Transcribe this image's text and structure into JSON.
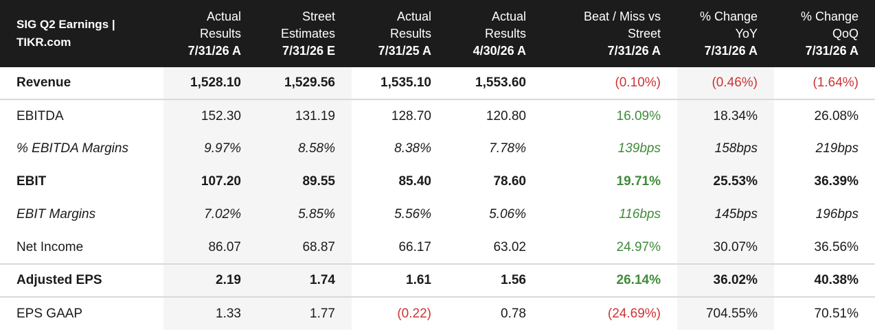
{
  "header": {
    "title_line1": "SIG Q2 Earnings |",
    "title_line2": "TIKR.com",
    "columns": [
      {
        "line1": "Actual",
        "line2": "Results",
        "date": "7/31/26 A"
      },
      {
        "line1": "Street",
        "line2": "Estimates",
        "date": "7/31/26 E"
      },
      {
        "line1": "Actual",
        "line2": "Results",
        "date": "7/31/25 A"
      },
      {
        "line1": "Actual",
        "line2": "Results",
        "date": "4/30/26 A"
      },
      {
        "line1": "Beat / Miss vs",
        "line2": "Street",
        "date": "7/31/26 A"
      },
      {
        "line1": "% Change",
        "line2": "YoY",
        "date": "7/31/26 A"
      },
      {
        "line1": "% Change",
        "line2": "QoQ",
        "date": "7/31/26 A"
      }
    ]
  },
  "rows": [
    {
      "label": "Revenue",
      "values": [
        "1,528.10",
        "1,529.56",
        "1,535.10",
        "1,553.60",
        "(0.10%)",
        "(0.46%)",
        "(1.64%)"
      ]
    },
    {
      "label": "EBITDA",
      "values": [
        "152.30",
        "131.19",
        "128.70",
        "120.80",
        "16.09%",
        "18.34%",
        "26.08%"
      ]
    },
    {
      "label": "% EBITDA Margins",
      "values": [
        "9.97%",
        "8.58%",
        "8.38%",
        "7.78%",
        "139bps",
        "158bps",
        "219bps"
      ]
    },
    {
      "label": "EBIT",
      "values": [
        "107.20",
        "89.55",
        "85.40",
        "78.60",
        "19.71%",
        "25.53%",
        "36.39%"
      ]
    },
    {
      "label": "EBIT Margins",
      "values": [
        "7.02%",
        "5.85%",
        "5.56%",
        "5.06%",
        "116bps",
        "145bps",
        "196bps"
      ]
    },
    {
      "label": "Net Income",
      "values": [
        "86.07",
        "68.87",
        "66.17",
        "63.02",
        "24.97%",
        "30.07%",
        "36.56%"
      ]
    },
    {
      "label": "Adjusted EPS",
      "values": [
        "2.19",
        "1.74",
        "1.61",
        "1.56",
        "26.14%",
        "36.02%",
        "40.38%"
      ]
    },
    {
      "label": "EPS GAAP",
      "values": [
        "1.33",
        "1.77",
        "(0.22)",
        "0.78",
        "(24.69%)",
        "704.55%",
        "70.51%"
      ]
    }
  ],
  "colors": {
    "header_bg": "#1c1c1c",
    "positive": "#3f8b3a",
    "negative": "#cc3333",
    "shade": "#f5f5f5"
  }
}
